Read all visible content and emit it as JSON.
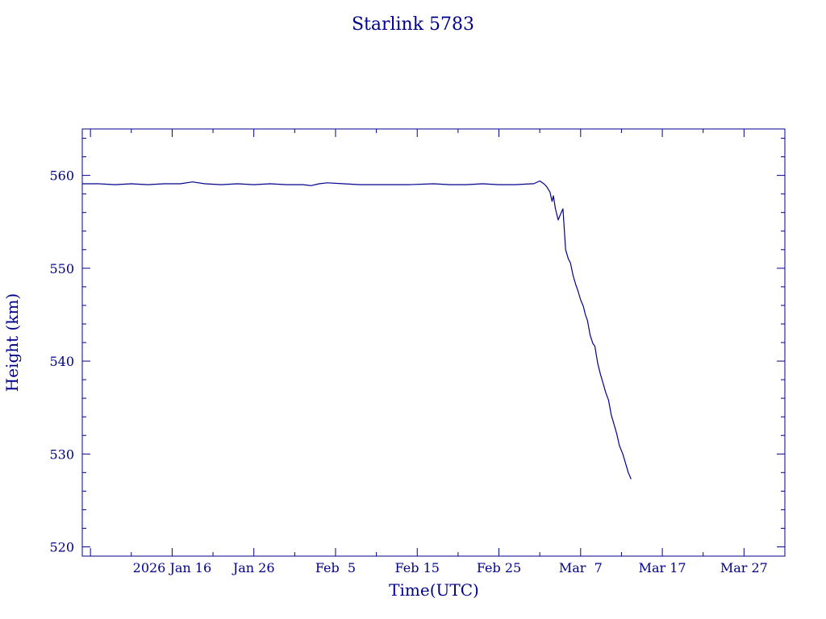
{
  "chart_data": {
    "type": "line",
    "title": "Starlink 5783",
    "xlabel": "Time(UTC)",
    "ylabel": "Height (km)",
    "ylim": [
      519,
      565
    ],
    "xlim": [
      "2026-01-05",
      "2026-04-01"
    ],
    "grid": false,
    "x_ticks": [
      {
        "date": "2026-01-16",
        "label": "2026 Jan 16"
      },
      {
        "date": "2026-01-26",
        "label": "Jan 26"
      },
      {
        "date": "2026-02-05",
        "label": "Feb  5"
      },
      {
        "date": "2026-02-15",
        "label": "Feb 15"
      },
      {
        "date": "2026-02-25",
        "label": "Feb 25"
      },
      {
        "date": "2026-03-07",
        "label": "Mar  7"
      },
      {
        "date": "2026-03-17",
        "label": "Mar 17"
      },
      {
        "date": "2026-03-27",
        "label": "Mar 27"
      }
    ],
    "y_ticks": [
      520,
      530,
      540,
      550,
      560
    ],
    "series": [
      {
        "color": "#00008b",
        "points": [
          [
            "2026-01-05T00:00",
            559.1
          ],
          [
            "2026-01-07T00:00",
            559.1
          ],
          [
            "2026-01-09T00:00",
            559.0
          ],
          [
            "2026-01-11T00:00",
            559.1
          ],
          [
            "2026-01-13T00:00",
            559.0
          ],
          [
            "2026-01-15T00:00",
            559.1
          ],
          [
            "2026-01-17T00:00",
            559.1
          ],
          [
            "2026-01-18T12:00",
            559.3
          ],
          [
            "2026-01-20T00:00",
            559.1
          ],
          [
            "2026-01-22T00:00",
            559.0
          ],
          [
            "2026-01-24T00:00",
            559.1
          ],
          [
            "2026-01-26T00:00",
            559.0
          ],
          [
            "2026-01-28T00:00",
            559.1
          ],
          [
            "2026-01-30T00:00",
            559.0
          ],
          [
            "2026-02-01T00:00",
            559.0
          ],
          [
            "2026-02-02T00:00",
            558.9
          ],
          [
            "2026-02-03T00:00",
            559.1
          ],
          [
            "2026-02-04T00:00",
            559.2
          ],
          [
            "2026-02-06T00:00",
            559.1
          ],
          [
            "2026-02-08T00:00",
            559.0
          ],
          [
            "2026-02-11T00:00",
            559.0
          ],
          [
            "2026-02-14T00:00",
            559.0
          ],
          [
            "2026-02-17T00:00",
            559.1
          ],
          [
            "2026-02-19T00:00",
            559.0
          ],
          [
            "2026-02-21T00:00",
            559.0
          ],
          [
            "2026-02-23T00:00",
            559.1
          ],
          [
            "2026-02-25T00:00",
            559.0
          ],
          [
            "2026-02-27T00:00",
            559.0
          ],
          [
            "2026-02-29T00:00",
            559.1
          ],
          [
            "2026-03-01T06:00",
            559.1
          ],
          [
            "2026-03-02T00:00",
            559.4
          ],
          [
            "2026-03-02T12:00",
            559.1
          ],
          [
            "2026-03-02T20:00",
            558.8
          ],
          [
            "2026-03-03T06:00",
            558.2
          ],
          [
            "2026-03-03T12:00",
            557.2
          ],
          [
            "2026-03-03T16:00",
            557.8
          ],
          [
            "2026-03-03T22:00",
            556.4
          ],
          [
            "2026-03-04T06:00",
            555.2
          ],
          [
            "2026-03-04T14:00",
            555.9
          ],
          [
            "2026-03-04T20:00",
            556.4
          ],
          [
            "2026-03-05T04:00",
            552.0
          ],
          [
            "2026-03-05T12:00",
            551.0
          ],
          [
            "2026-03-05T18:00",
            550.6
          ],
          [
            "2026-03-06T02:00",
            549.2
          ],
          [
            "2026-03-06T10:00",
            548.2
          ],
          [
            "2026-03-06T16:00",
            547.6
          ],
          [
            "2026-03-07T00:00",
            546.6
          ],
          [
            "2026-03-07T08:00",
            545.9
          ],
          [
            "2026-03-07T14:00",
            545.0
          ],
          [
            "2026-03-07T20:00",
            544.4
          ],
          [
            "2026-03-08T04:00",
            542.8
          ],
          [
            "2026-03-08T12:00",
            541.9
          ],
          [
            "2026-03-08T18:00",
            541.6
          ],
          [
            "2026-03-09T02:00",
            539.8
          ],
          [
            "2026-03-09T10:00",
            538.6
          ],
          [
            "2026-03-09T18:00",
            537.6
          ],
          [
            "2026-03-10T02:00",
            536.6
          ],
          [
            "2026-03-10T10:00",
            535.8
          ],
          [
            "2026-03-10T18:00",
            534.2
          ],
          [
            "2026-03-11T02:00",
            533.2
          ],
          [
            "2026-03-11T10:00",
            532.2
          ],
          [
            "2026-03-11T18:00",
            530.9
          ],
          [
            "2026-03-12T04:00",
            530.0
          ],
          [
            "2026-03-12T12:00",
            529.0
          ],
          [
            "2026-03-12T20:00",
            528.0
          ],
          [
            "2026-03-13T04:00",
            527.3
          ]
        ]
      }
    ]
  }
}
